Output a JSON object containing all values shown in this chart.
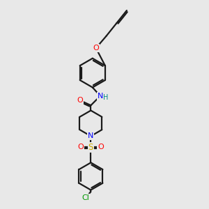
{
  "bg_color": "#e8e8e8",
  "bond_color": "#1a1a1a",
  "N_color": "#0000ff",
  "O_color": "#ff0000",
  "S_color": "#ccaa00",
  "Cl_color": "#009900",
  "H_color": "#008888",
  "lw": 1.6,
  "xlim": [
    0,
    10
  ],
  "ylim": [
    0,
    12
  ]
}
